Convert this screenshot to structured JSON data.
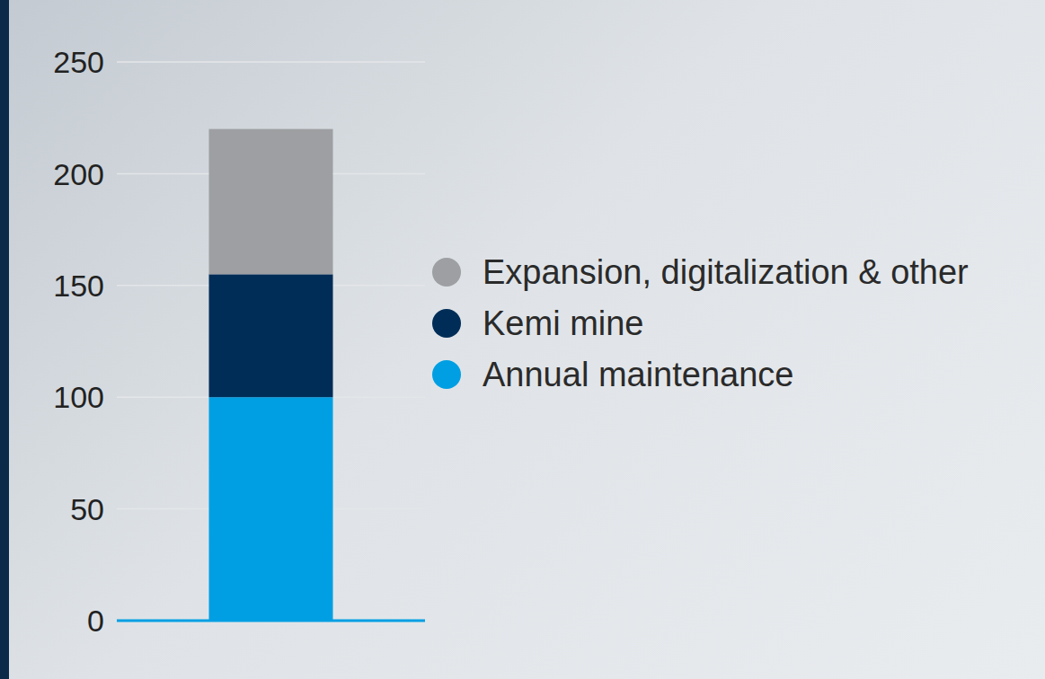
{
  "chart_data": {
    "type": "bar",
    "stacked": true,
    "grid": true,
    "legend": "right",
    "categories": [
      null
    ],
    "series": [
      {
        "name": "Annual maintenance",
        "color": "#009fe3",
        "values": [
          100
        ]
      },
      {
        "name": "Kemi mine",
        "color": "#002d57",
        "values": [
          55
        ]
      },
      {
        "name": "Expansion, digitalization & other",
        "color": "#9d9fa2",
        "values": [
          65
        ]
      }
    ],
    "ylim": [
      0,
      250
    ],
    "yticks": [
      0,
      50,
      100,
      150,
      200,
      250
    ]
  }
}
